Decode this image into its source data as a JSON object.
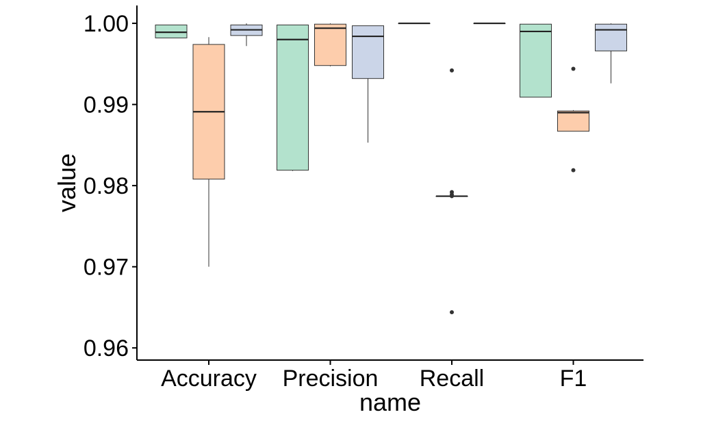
{
  "chart_data": {
    "type": "box",
    "xlabel": "name",
    "ylabel": "value",
    "categories": [
      "Accuracy",
      "Precision",
      "Recall",
      "F1"
    ],
    "ylim": [
      0.9585,
      1.0022
    ],
    "yticks": [
      {
        "value": 0.96,
        "label": "0.96"
      },
      {
        "value": 0.97,
        "label": "0.97"
      },
      {
        "value": 0.98,
        "label": "0.98"
      },
      {
        "value": 0.99,
        "label": "0.99"
      },
      {
        "value": 1.0,
        "label": "1.00"
      }
    ],
    "grid": false,
    "legend": "none",
    "colors": [
      "#b3e2cd",
      "#fdcdac",
      "#cbd5e8"
    ],
    "groups": [
      {
        "category": "Accuracy",
        "boxes": [
          {
            "min": 0.9982,
            "q1": 0.9982,
            "median": 0.9989,
            "q3": 0.9998,
            "max": 0.9998,
            "outliers": []
          },
          {
            "min": 0.97,
            "q1": 0.9808,
            "median": 0.9891,
            "q3": 0.9974,
            "max": 0.9983,
            "outliers": []
          },
          {
            "min": 0.9972,
            "q1": 0.9985,
            "median": 0.9992,
            "q3": 0.9998,
            "max": 1.0,
            "outliers": []
          }
        ]
      },
      {
        "category": "Precision",
        "boxes": [
          {
            "min": 0.9818,
            "q1": 0.9819,
            "median": 0.998,
            "q3": 0.9998,
            "max": 0.9998,
            "outliers": []
          },
          {
            "min": 0.9947,
            "q1": 0.9948,
            "median": 0.9994,
            "q3": 0.9999,
            "max": 1.0,
            "outliers": []
          },
          {
            "min": 0.9853,
            "q1": 0.9932,
            "median": 0.9984,
            "q3": 0.9997,
            "max": 0.9997,
            "outliers": []
          }
        ]
      },
      {
        "category": "Recall",
        "boxes": [
          {
            "min": 1.0,
            "q1": 1.0,
            "median": 1.0,
            "q3": 1.0,
            "max": 1.0,
            "outliers": []
          },
          {
            "min": 0.9787,
            "q1": 0.9787,
            "median": 0.9787,
            "q3": 0.9787,
            "max": 0.9787,
            "outliers": [
              0.9942,
              0.9792,
              0.9789,
              0.9787,
              0.9644
            ]
          },
          {
            "min": 1.0,
            "q1": 1.0,
            "median": 1.0,
            "q3": 1.0,
            "max": 1.0,
            "outliers": []
          }
        ]
      },
      {
        "category": "F1",
        "boxes": [
          {
            "min": 0.9909,
            "q1": 0.9909,
            "median": 0.999,
            "q3": 0.9999,
            "max": 0.9999,
            "outliers": []
          },
          {
            "min": 0.9867,
            "q1": 0.9867,
            "median": 0.989,
            "q3": 0.9892,
            "max": 0.9893,
            "outliers": [
              0.9944,
              0.9819
            ]
          },
          {
            "min": 0.9926,
            "q1": 0.9966,
            "median": 0.9992,
            "q3": 0.9999,
            "max": 1.0,
            "outliers": []
          }
        ]
      }
    ]
  }
}
